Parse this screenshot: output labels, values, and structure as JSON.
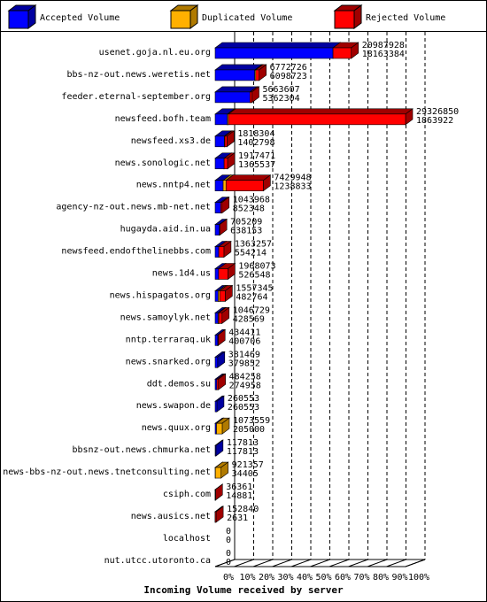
{
  "chart_data": {
    "type": "bar",
    "orientation": "horizontal",
    "stacked": true,
    "x_label": "Incoming Volume received by server",
    "categories": [
      "usenet.goja.nl.eu.org",
      "bbs-nz-out.news.weretis.net",
      "feeder.eternal-september.org",
      "newsfeed.bofh.team",
      "newsfeed.xs3.de",
      "news.sonologic.net",
      "news.nntp4.net",
      "agency-nz-out.news.mb-net.net",
      "hugayda.aid.in.ua",
      "newsfeed.endofthelinebbs.com",
      "news.1d4.us",
      "news.hispagatos.org",
      "news.samoylyk.net",
      "nntp.terraraq.uk",
      "news.snarked.org",
      "ddt.demos.su",
      "news.swapon.de",
      "news.quux.org",
      "bbsnz-out.news.chmurka.net",
      "news-bbs-nz-out.news.tnetconsulting.net",
      "csiph.com",
      "news.ausics.net",
      "localhost",
      "nut.utcc.utoronto.ca"
    ],
    "series": [
      {
        "name": "Accepted Volume",
        "color": "#0000ff",
        "side": "#0000a0",
        "values": [
          61.9,
          20.8,
          18.3,
          6.4,
          4.8,
          4.7,
          4.2,
          2.9,
          2.2,
          1.9,
          1.8,
          1.6,
          1.5,
          1.4,
          1.3,
          0.9,
          0.9,
          0.7,
          0.4,
          0.1,
          0.05,
          0.01,
          0,
          0
        ]
      },
      {
        "name": "Duplicated Volume",
        "color": "#ffb000",
        "side": "#b07a00",
        "values": [
          0,
          0.5,
          0,
          0.6,
          0.3,
          0,
          1.5,
          0,
          0,
          0,
          0,
          0.8,
          0.4,
          0,
          0,
          0,
          0,
          3.0,
          0,
          3.0,
          0,
          0,
          0,
          0
        ]
      },
      {
        "name": "Rejected Volume",
        "color": "#ff0000",
        "side": "#a00000",
        "values": [
          9.6,
          1.8,
          1.0,
          93.0,
          1.1,
          1.8,
          19.6,
          0.7,
          0.2,
          2.7,
          4.9,
          2.9,
          1.7,
          0.1,
          0,
          0.8,
          0,
          0,
          0,
          0,
          0.07,
          0.5,
          0,
          0
        ]
      }
    ],
    "total_volume": [
      20987928,
      6772726,
      5663607,
      29326850,
      1818304,
      1917471,
      7429948,
      1043968,
      705209,
      1363257,
      1968073,
      1557345,
      1046729,
      434411,
      381469,
      484258,
      260553,
      1073559,
      117813,
      921357,
      36361,
      152840,
      0,
      0
    ],
    "accepted_volume": [
      18163384,
      6098723,
      5362304,
      1863922,
      1402798,
      1365537,
      1238833,
      852348,
      638153,
      554214,
      526548,
      482764,
      428569,
      400706,
      379852,
      274958,
      260553,
      205000,
      117813,
      34405,
      14881,
      2631,
      0,
      0
    ],
    "xlim": [
      0,
      100
    ],
    "xticks": [
      {
        "value": 0,
        "label": "0%"
      },
      {
        "value": 10,
        "label": "10%"
      },
      {
        "value": 20,
        "label": "20%"
      },
      {
        "value": 30,
        "label": "30%"
      },
      {
        "value": 40,
        "label": "40%"
      },
      {
        "value": 50,
        "label": "50%"
      },
      {
        "value": 60,
        "label": "60%"
      },
      {
        "value": 70,
        "label": "70%"
      },
      {
        "value": 80,
        "label": "80%"
      },
      {
        "value": 90,
        "label": "90%"
      },
      {
        "value": 100,
        "label": "100%"
      }
    ],
    "grid": true,
    "legend": "top"
  }
}
